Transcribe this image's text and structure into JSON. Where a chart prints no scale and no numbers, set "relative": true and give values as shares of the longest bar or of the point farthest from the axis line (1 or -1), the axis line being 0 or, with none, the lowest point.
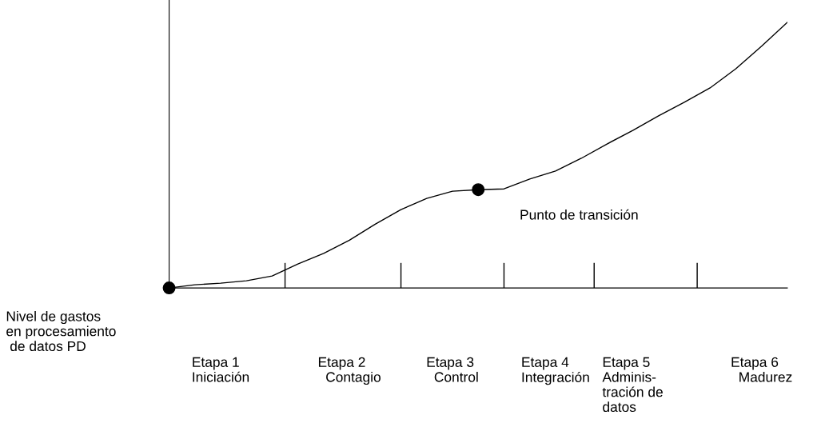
{
  "chart_data": {
    "type": "line",
    "relative": true,
    "legend": false,
    "grid": false,
    "ylabel": "Nivel de gastos\nen procesamiento\n de datos PD",
    "categories": [
      null,
      null,
      "Etapa 1\nIniciación",
      null,
      null,
      null,
      null,
      "Etapa 2\n  Contagio",
      null,
      null,
      null,
      "Etapa 3\n  Control",
      null,
      null,
      null,
      "Etapa 4\nIntegración",
      null,
      null,
      "Etapa 5\nAdminis-\ntración de\ndatos",
      null,
      null,
      null,
      null,
      "Etapa 6\n  Madurez",
      null
    ],
    "series": [
      {
        "color": "#000000",
        "marker": "none",
        "values": [
          0,
          0.012,
          0.018,
          0.027,
          0.045,
          0.09,
          0.13,
          0.18,
          0.24,
          0.295,
          0.337,
          0.364,
          0.37,
          0.373,
          0.41,
          0.44,
          0.488,
          0.542,
          0.593,
          0.648,
          0.699,
          0.753,
          0.825,
          0.91,
          1.0
        ]
      },
      {
        "type": "scatter",
        "color": "#000000",
        "marker": "circle",
        "values": [
          0,
          null,
          null,
          null,
          null,
          null,
          null,
          null,
          null,
          null,
          null,
          null,
          0.37,
          null,
          null,
          null,
          null,
          null,
          null,
          null,
          null,
          null,
          null,
          null,
          null
        ]
      }
    ],
    "annotations": [
      "Punto de transición"
    ]
  }
}
